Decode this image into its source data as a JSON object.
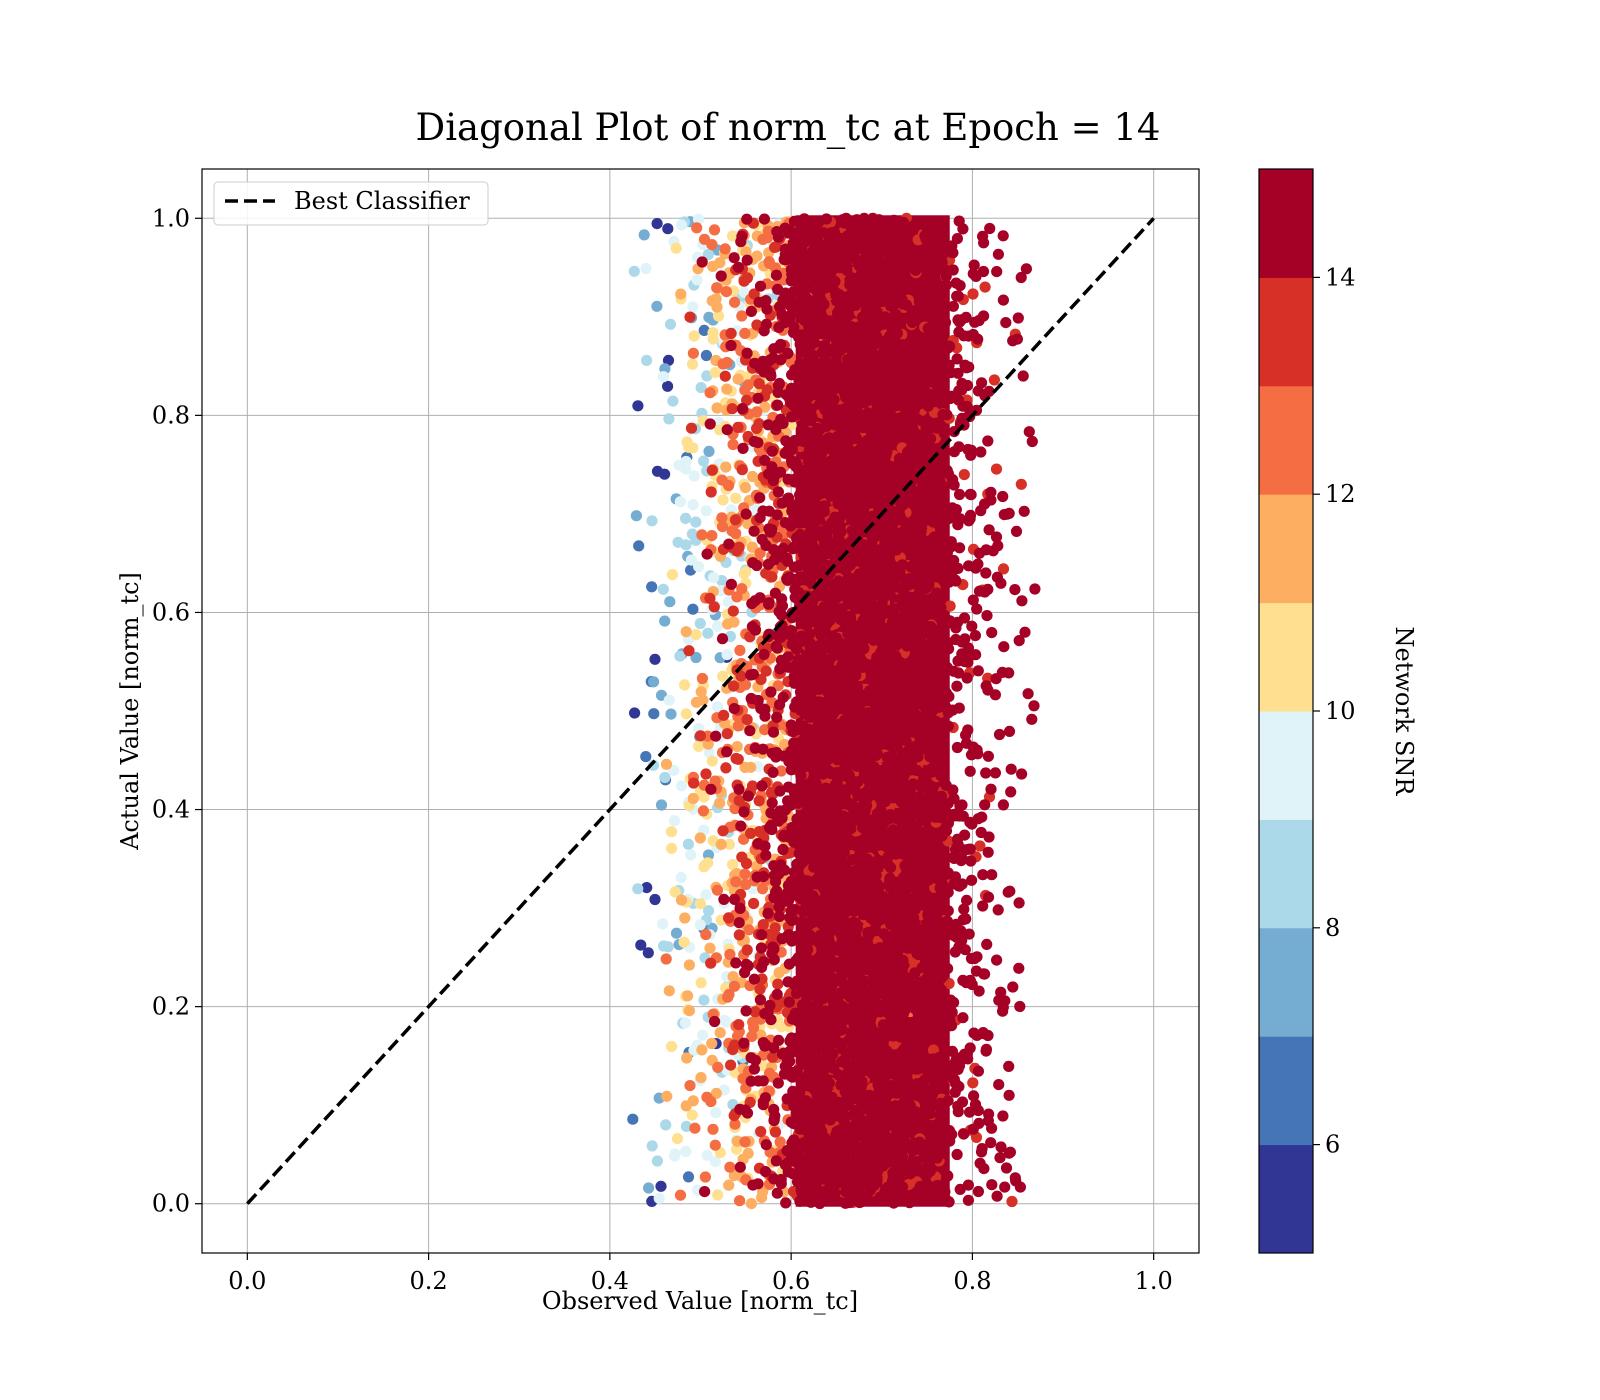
{
  "chart_data": {
    "type": "scatter",
    "title": "Diagonal Plot of norm_tc at Epoch = 14",
    "xlabel": "Observed Value [norm_tc]",
    "ylabel": "Actual Value [norm_tc]",
    "xlim": [
      -0.05,
      1.05
    ],
    "ylim": [
      -0.05,
      1.05
    ],
    "xticks": [
      0.0,
      0.2,
      0.4,
      0.6,
      0.8,
      1.0
    ],
    "yticks": [
      0.0,
      0.2,
      0.4,
      0.6,
      0.8,
      1.0
    ],
    "xtick_labels": [
      "0.0",
      "0.2",
      "0.4",
      "0.6",
      "0.8",
      "1.0"
    ],
    "ytick_labels": [
      "0.0",
      "0.2",
      "0.4",
      "0.6",
      "0.8",
      "1.0"
    ],
    "grid": true,
    "legend": {
      "placement": "top-left",
      "entries": [
        "Best Classifier"
      ]
    },
    "reference_line": {
      "name": "Best Classifier",
      "x": [
        0.0,
        1.0
      ],
      "y": [
        0.0,
        1.0
      ],
      "style": "dashed",
      "color": "#000000"
    },
    "points": {
      "x_range": [
        0.42,
        0.87
      ],
      "y_range": [
        0.0,
        1.0
      ],
      "color_variable": "Network SNR",
      "description_bands": [
        {
          "x_from": 0.43,
          "x_to": 0.47,
          "snr": [
            5,
            9
          ]
        },
        {
          "x_from": 0.47,
          "x_to": 0.53,
          "snr": [
            9,
            12
          ]
        },
        {
          "x_from": 0.53,
          "x_to": 0.6,
          "snr": [
            11,
            14
          ]
        },
        {
          "x_from": 0.6,
          "x_to": 0.87,
          "snr": [
            14,
            15
          ]
        }
      ]
    },
    "colorbar": {
      "label": "Network SNR",
      "min": 5,
      "max": 15,
      "ticks": [
        6,
        8,
        10,
        12,
        14
      ],
      "tick_labels": [
        "6",
        "8",
        "10",
        "12",
        "14"
      ],
      "colors": [
        "#313695",
        "#4575b4",
        "#74add1",
        "#abd9e9",
        "#e0f3f8",
        "#fee090",
        "#fdae61",
        "#f46d43",
        "#d73027",
        "#a50026"
      ]
    }
  }
}
